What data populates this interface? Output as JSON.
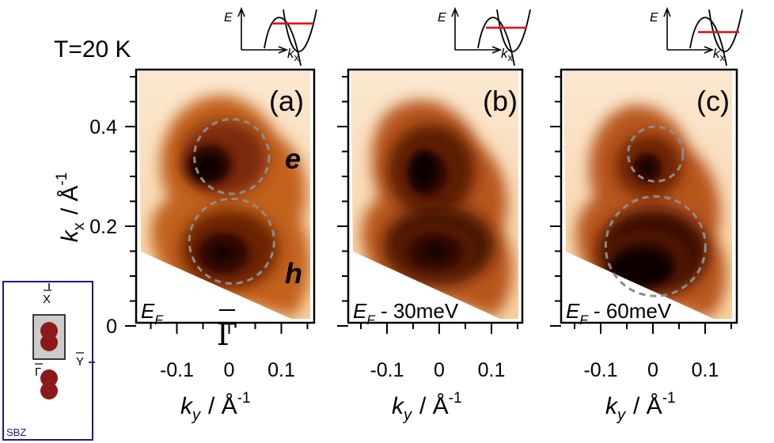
{
  "figure": {
    "temperature_label": "T=20 K",
    "inset_axis_e": "E",
    "inset_axis_k": "k",
    "inset_axis_k_sub": "x",
    "x_axis_var": "k",
    "x_axis_sub": "y",
    "x_axis_unit": "/  Å",
    "x_axis_exp": "-1",
    "y_axis_var": "k",
    "y_axis_sub": "x",
    "y_axis_unit": "/  Å",
    "y_axis_exp": "-1",
    "gamma_label": "Γ",
    "label_e": "e",
    "label_h": "h",
    "sbz": {
      "label": "SBZ",
      "x_label": "X",
      "y_label": "Y",
      "g_label": "Γ",
      "border_color": "#1a1a80",
      "pocket_color": "#8c1a1a"
    },
    "colors": {
      "map_light": "#fbe3c6",
      "map_dark": "#160401",
      "fermi_line": "#e0141e",
      "circle": "#8c8c8c"
    }
  },
  "chart_data": [
    {
      "type": "heatmap",
      "panel": "(a)",
      "energy_label": "E",
      "energy_sub": "F",
      "energy_suffix": "",
      "inset_fermi_level": 0.42,
      "xlim": [
        -0.2,
        0.2
      ],
      "ylim": [
        0,
        0.5
      ],
      "x_ticks": [
        -0.1,
        0,
        0.1
      ],
      "y_ticks": [
        0,
        0.2,
        0.4
      ],
      "x_tick_labels": [
        "-0.1",
        "0",
        "0.1"
      ],
      "y_tick_labels": [
        "0",
        "0.2",
        "0.4"
      ],
      "circles": [
        {
          "pocket": "e",
          "kx": 0.34,
          "ky": 0.005,
          "r": 0.075
        },
        {
          "pocket": "h",
          "kx": 0.17,
          "ky": 0.005,
          "r": 0.085
        }
      ]
    },
    {
      "type": "heatmap",
      "panel": "(b)",
      "energy_label": "E",
      "energy_sub": "F",
      "energy_suffix": " - 30meV",
      "inset_fermi_level": 0.55,
      "xlim": [
        -0.2,
        0.2
      ],
      "ylim": [
        0,
        0.5
      ],
      "x_ticks": [
        -0.1,
        0,
        0.1
      ],
      "y_ticks": [
        0,
        0.2,
        0.4
      ],
      "x_tick_labels": [
        "-0.1",
        "0",
        "0.1"
      ],
      "y_tick_labels": [
        "0",
        "0.2",
        "0.4"
      ],
      "circles": []
    },
    {
      "type": "heatmap",
      "panel": "(c)",
      "energy_label": "E",
      "energy_sub": "F",
      "energy_suffix": " - 60meV",
      "inset_fermi_level": 0.68,
      "xlim": [
        -0.2,
        0.2
      ],
      "ylim": [
        0,
        0.5
      ],
      "x_ticks": [
        -0.1,
        0,
        0.1
      ],
      "y_ticks": [
        0,
        0.2,
        0.4
      ],
      "x_tick_labels": [
        "-0.1",
        "0",
        "0.1"
      ],
      "y_tick_labels": [
        "0",
        "0.2",
        "0.4"
      ],
      "circles": [
        {
          "pocket": "e",
          "kx": 0.345,
          "ky": 0.005,
          "r": 0.055
        },
        {
          "pocket": "h",
          "kx": 0.16,
          "ky": 0.005,
          "r": 0.1
        }
      ]
    }
  ]
}
